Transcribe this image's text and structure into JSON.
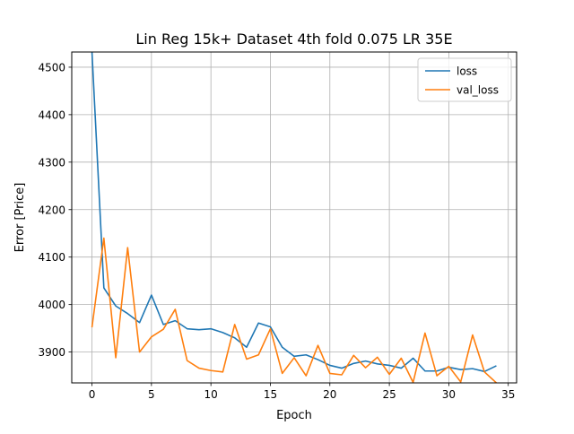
{
  "chart_data": {
    "type": "line",
    "title": "Lin Reg 15k+ Dataset 4th fold 0.075 LR 35E",
    "xlabel": "Epoch",
    "ylabel": "Error [Price]",
    "xlim": [
      -1.7,
      35.7
    ],
    "ylim": [
      3835,
      4532
    ],
    "xticks": [
      0,
      5,
      10,
      15,
      20,
      25,
      30,
      35
    ],
    "yticks": [
      3900,
      4000,
      4100,
      4200,
      4300,
      4400,
      4500
    ],
    "grid": true,
    "legend_position": "upper-right",
    "x": [
      0,
      1,
      2,
      3,
      4,
      5,
      6,
      7,
      8,
      9,
      10,
      11,
      12,
      13,
      14,
      15,
      16,
      17,
      18,
      19,
      20,
      21,
      22,
      23,
      24,
      25,
      26,
      27,
      28,
      29,
      30,
      31,
      32,
      33,
      34
    ],
    "series": [
      {
        "name": "loss",
        "color": "#1f77b4",
        "values": [
          4532,
          4035,
          3997,
          3981,
          3962,
          4020,
          3958,
          3966,
          3949,
          3947,
          3949,
          3941,
          3930,
          3910,
          3961,
          3953,
          3910,
          3891,
          3894,
          3884,
          3872,
          3866,
          3876,
          3881,
          3875,
          3872,
          3866,
          3887,
          3860,
          3860,
          3868,
          3863,
          3865,
          3859,
          3871
        ]
      },
      {
        "name": "val_loss",
        "color": "#ff7f0e",
        "values": [
          3952,
          4140,
          3888,
          4120,
          3900,
          3932,
          3948,
          3990,
          3882,
          3866,
          3861,
          3858,
          3958,
          3885,
          3894,
          3949,
          3855,
          3888,
          3850,
          3914,
          3855,
          3852,
          3893,
          3867,
          3889,
          3853,
          3887,
          3836,
          3940,
          3850,
          3870,
          3837,
          3936,
          3858,
          3835
        ]
      }
    ]
  }
}
